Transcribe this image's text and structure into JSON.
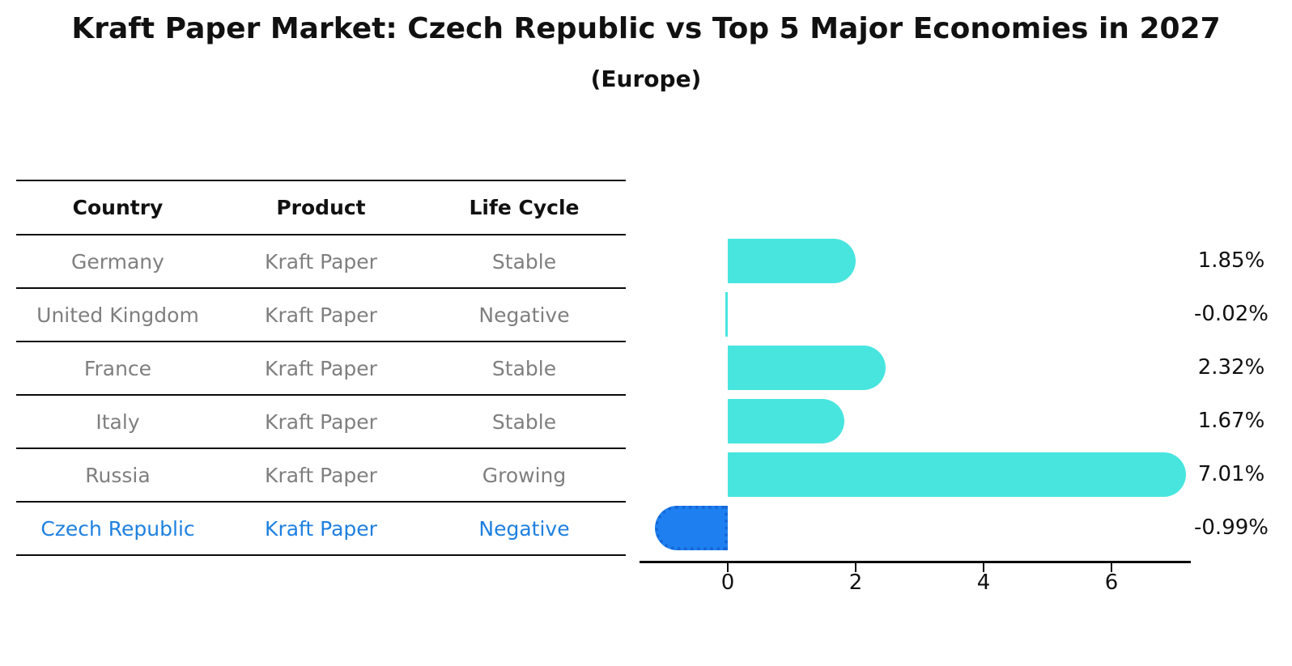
{
  "header": {
    "title": "Kraft Paper Market: Czech Republic vs Top 5 Major Economies in 2027",
    "subtitle": "(Europe)"
  },
  "table": {
    "headers": [
      "Country",
      "Product",
      "Life Cycle"
    ],
    "rows": [
      {
        "country": "Germany",
        "product": "Kraft Paper",
        "life_cycle": "Stable"
      },
      {
        "country": "United Kingdom",
        "product": "Kraft Paper",
        "life_cycle": "Negative"
      },
      {
        "country": "France",
        "product": "Kraft Paper",
        "life_cycle": "Stable"
      },
      {
        "country": "Italy",
        "product": "Kraft Paper",
        "life_cycle": "Stable"
      },
      {
        "country": "Russia",
        "product": "Kraft Paper",
        "life_cycle": "Growing"
      },
      {
        "country": "Czech Republic",
        "product": "Kraft Paper",
        "life_cycle": "Negative"
      }
    ],
    "highlight_row": 5
  },
  "chart_data": {
    "type": "bar",
    "orientation": "horizontal",
    "title": "Kraft Paper Market: Czech Republic vs Top 5 Major Economies in 2027 (Europe)",
    "xlabel": "",
    "ylabel": "",
    "categories": [
      "Germany",
      "United Kingdom",
      "France",
      "Italy",
      "Russia",
      "Czech Republic"
    ],
    "values": [
      1.85,
      -0.02,
      2.32,
      1.67,
      7.01,
      -0.99
    ],
    "value_labels": [
      "1.85%",
      "-0.02%",
      "2.32%",
      "1.67%",
      "7.01%",
      "-0.99%"
    ],
    "value_suffix": "%",
    "x_ticks": [
      "0",
      "2",
      "4",
      "6"
    ],
    "x_tick_values": [
      0,
      2,
      4,
      6
    ],
    "xlim": [
      -1.36,
      7.26
    ],
    "grid": false,
    "legend": false,
    "bar_color": "#48e5df",
    "highlight_bar_color": "#1e80f0",
    "highlight_border_color": "#1667d9",
    "highlight_index": 5
  },
  "colors": {
    "background": "#ffffff",
    "title_text": "#111111",
    "table_header_text": "#111111",
    "table_text": "#7f7f7f",
    "highlight_text": "#1e80e0",
    "axis": "#0a0a0a",
    "bar_cyan": "#48e5df",
    "bar_blue": "#1e80f0"
  }
}
